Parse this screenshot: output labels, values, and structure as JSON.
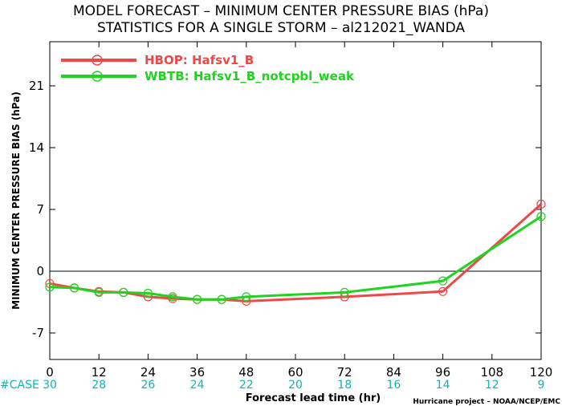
{
  "chart_data": {
    "type": "line",
    "title_line1": "MODEL FORECAST – MINIMUM CENTER PRESSURE BIAS (hPa)",
    "title_line2": "STATISTICS FOR A SINGLE STORM – al212021_WANDA",
    "xlabel": "Forecast lead time (hr)",
    "ylabel": "MINIMUM CENTER PRESSURE BIAS (hPa)",
    "xlim": [
      0,
      120
    ],
    "ylim": [
      -10,
      26
    ],
    "x_ticks": [
      0,
      12,
      24,
      36,
      48,
      60,
      72,
      84,
      96,
      108,
      120
    ],
    "y_ticks": [
      -7,
      0,
      7,
      14,
      21
    ],
    "zero_line": true,
    "legend_position": "top-left",
    "case_label": "#CASE",
    "cases": [
      "30",
      "28",
      "26",
      "24",
      "22",
      "20",
      "18",
      "16",
      "14",
      "12",
      "9"
    ],
    "credit": "Hurricane project – NOAA/NCEP/EMC",
    "series": [
      {
        "name": "HBOP: Hafsv1_B",
        "color": "#f04848",
        "x": [
          0,
          6,
          12,
          18,
          24,
          30,
          36,
          42,
          48,
          72,
          96,
          120
        ],
        "y": [
          -1.4,
          -1.9,
          -2.3,
          -2.4,
          -2.9,
          -3.1,
          -3.2,
          -3.2,
          -3.4,
          -2.9,
          -2.3,
          7.6
        ]
      },
      {
        "name": "WBTB: Hafsv1_B_notcpbl_weak",
        "color": "#1ed41e",
        "x": [
          0,
          6,
          12,
          18,
          24,
          30,
          36,
          42,
          48,
          72,
          96,
          120
        ],
        "y": [
          -1.8,
          -1.9,
          -2.4,
          -2.4,
          -2.5,
          -2.9,
          -3.2,
          -3.2,
          -2.9,
          -2.4,
          -1.1,
          6.2
        ]
      }
    ]
  }
}
